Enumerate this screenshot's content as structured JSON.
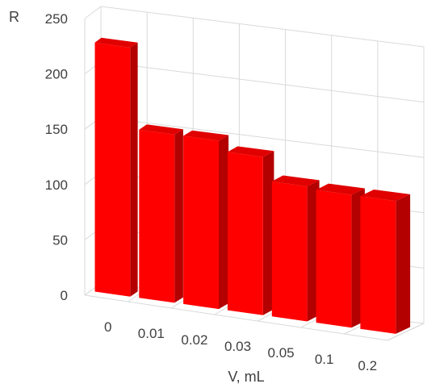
{
  "chart_data": {
    "type": "bar",
    "style": "3d-column",
    "categories": [
      "0",
      "0.01",
      "0.02",
      "0.03",
      "0.05",
      "0.1",
      "0.2"
    ],
    "values": [
      225,
      152,
      152,
      143,
      122,
      120,
      120
    ],
    "ylabel": "R",
    "xlabel": "V, mL",
    "ylim": [
      0,
      250
    ],
    "yticks": [
      "0",
      "50",
      "100",
      "150",
      "200",
      "250"
    ],
    "grid": true,
    "legend": "none",
    "bar_color": "#ff0000",
    "bar_side_color": "#b30000",
    "bar_top_color": "#e00000",
    "grid_color": "#d9d9d9"
  }
}
